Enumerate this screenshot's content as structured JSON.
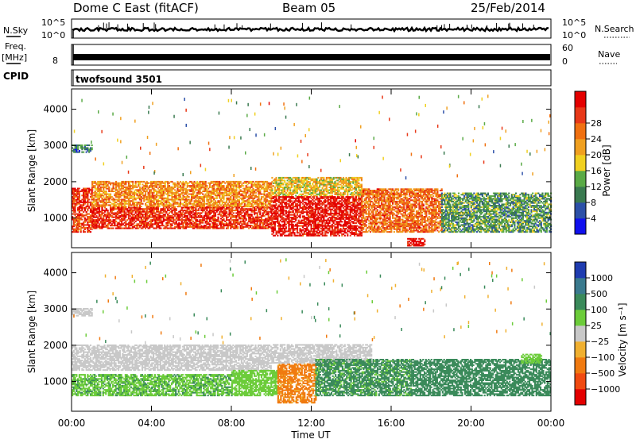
{
  "header": {
    "station": "Dome C East (fitACF)",
    "beam": "Beam 05",
    "date": "25/Feb/2014"
  },
  "strips": {
    "nsky_label": "N.Sky",
    "nsky_ticks": [
      "10^5",
      "10^0"
    ],
    "nsearch_label": "N.Search",
    "nsearch_ticks": [
      "10^5",
      "10^0"
    ],
    "freq_label": "Freq.",
    "freq_unit": "[MHz]",
    "freq_ticks": [
      "8"
    ],
    "nave_label": "Nave",
    "nave_ticks": [
      "60",
      "0"
    ],
    "cpid_label": "CPID",
    "cpid_value": "twofsound 3501"
  },
  "axes": {
    "ylabel": "Slant Range [km]",
    "xlabel": "Time UT",
    "yticks": [
      "1000",
      "2000",
      "3000",
      "4000"
    ],
    "xticks": [
      "00:00",
      "04:00",
      "08:00",
      "12:00",
      "16:00",
      "20:00",
      "00:00"
    ]
  },
  "power_scale": {
    "label": "Power [dB]",
    "ticks": [
      "4",
      "8",
      "12",
      "16",
      "20",
      "24",
      "28"
    ],
    "colors": [
      "#1010ee",
      "#2c50a8",
      "#3a7a50",
      "#5aaa46",
      "#f0d020",
      "#f0a020",
      "#f07010",
      "#e83818",
      "#e40000"
    ]
  },
  "velocity_scale": {
    "label": "Velocity [m s⁻¹]",
    "ticks": [
      "1000",
      "500",
      "100",
      "25",
      "−25",
      "−100",
      "−500",
      "−1000"
    ],
    "colors": [
      "#1f3cb0",
      "#3a7a8e",
      "#3a8a5a",
      "#6ccc3a",
      "#c8c8c8",
      "#f0b030",
      "#f07a10",
      "#f04a10",
      "#e40000"
    ]
  },
  "chart_data": [
    {
      "type": "heatmap",
      "title": "Power [dB]",
      "xlabel": "Time UT",
      "ylabel": "Slant Range [km]",
      "x_range": [
        "00:00",
        "24:00"
      ],
      "ylim": [
        180,
        4560
      ],
      "value_range": [
        0,
        30
      ],
      "regions": [
        {
          "t_start": 0.0,
          "t_end": 1.0,
          "range_start": 1150,
          "range_end": 1800,
          "power_db": 26
        },
        {
          "t_start": 0.0,
          "t_end": 1.0,
          "range_start": 600,
          "range_end": 1100,
          "power_db": 24
        },
        {
          "t_start": 0.0,
          "t_end": 1.0,
          "range_start": 2800,
          "range_end": 3000,
          "power_db": 8
        },
        {
          "t_start": 1.0,
          "t_end": 10.0,
          "range_start": 1300,
          "range_end": 2000,
          "power_db": 20
        },
        {
          "t_start": 1.0,
          "t_end": 10.0,
          "range_start": 700,
          "range_end": 1300,
          "power_db": 26
        },
        {
          "t_start": 10.0,
          "t_end": 14.5,
          "range_start": 1600,
          "range_end": 2100,
          "power_db": 16
        },
        {
          "t_start": 10.0,
          "t_end": 14.5,
          "range_start": 500,
          "range_end": 1600,
          "power_db": 28
        },
        {
          "t_start": 14.5,
          "t_end": 18.5,
          "range_start": 600,
          "range_end": 1800,
          "power_db": 22
        },
        {
          "t_start": 18.5,
          "t_end": 24.0,
          "range_start": 600,
          "range_end": 1700,
          "power_db": 10
        },
        {
          "t_start": 16.8,
          "t_end": 17.7,
          "range_start": 220,
          "range_end": 420,
          "power_db": 28
        }
      ]
    },
    {
      "type": "heatmap",
      "title": "Velocity [m s⁻¹]",
      "xlabel": "Time UT",
      "ylabel": "Slant Range [km]",
      "x_range": [
        "00:00",
        "24:00"
      ],
      "ylim": [
        180,
        4560
      ],
      "value_range": [
        -1000,
        1000
      ],
      "regions": [
        {
          "t_start": 0.0,
          "t_end": 10.0,
          "range_start": 1300,
          "range_end": 2000,
          "velocity": 0
        },
        {
          "t_start": 0.0,
          "t_end": 1.0,
          "range_start": 2800,
          "range_end": 3000,
          "velocity": 0
        },
        {
          "t_start": 0.0,
          "t_end": 8.0,
          "range_start": 600,
          "range_end": 1200,
          "velocity": 80
        },
        {
          "t_start": 8.0,
          "t_end": 10.3,
          "range_start": 600,
          "range_end": 1300,
          "velocity": 60
        },
        {
          "t_start": 10.3,
          "t_end": 12.2,
          "range_start": 400,
          "range_end": 1500,
          "velocity": -150
        },
        {
          "t_start": 10.0,
          "t_end": 15.0,
          "range_start": 1500,
          "range_end": 2000,
          "velocity": 0
        },
        {
          "t_start": 12.2,
          "t_end": 17.0,
          "range_start": 600,
          "range_end": 1600,
          "velocity": 150
        },
        {
          "t_start": 17.0,
          "t_end": 24.0,
          "range_start": 600,
          "range_end": 1600,
          "velocity": 200
        },
        {
          "t_start": 22.5,
          "t_end": 23.5,
          "range_start": 1500,
          "range_end": 1750,
          "velocity": 60
        }
      ]
    }
  ]
}
